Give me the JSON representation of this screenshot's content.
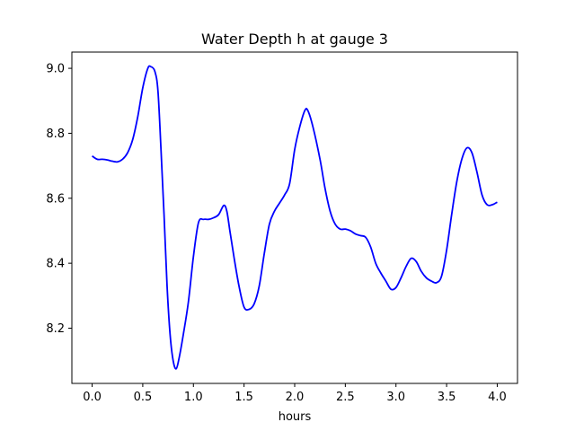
{
  "chart_data": {
    "type": "line",
    "title": "Water Depth h at gauge 3",
    "xlabel": "hours",
    "ylabel": "",
    "xlim": [
      -0.2,
      4.2
    ],
    "ylim": [
      8.03,
      9.05
    ],
    "xticks": [
      0.0,
      0.5,
      1.0,
      1.5,
      2.0,
      2.5,
      3.0,
      3.5,
      4.0
    ],
    "xtick_labels": [
      "0.0",
      "0.5",
      "1.0",
      "1.5",
      "2.0",
      "2.5",
      "3.0",
      "3.5",
      "4.0"
    ],
    "yticks": [
      8.2,
      8.4,
      8.6,
      8.8,
      9.0
    ],
    "ytick_labels": [
      "8.2",
      "8.4",
      "8.6",
      "8.8",
      "9.0"
    ],
    "grid": false,
    "series": [
      {
        "color": "#0000ff",
        "x": [
          0.0,
          0.05,
          0.1,
          0.15,
          0.2,
          0.25,
          0.3,
          0.35,
          0.4,
          0.45,
          0.5,
          0.55,
          0.58,
          0.62,
          0.65,
          0.68,
          0.71,
          0.74,
          0.77,
          0.8,
          0.83,
          0.86,
          0.9,
          0.95,
          1.0,
          1.05,
          1.1,
          1.15,
          1.2,
          1.25,
          1.3,
          1.33,
          1.36,
          1.4,
          1.45,
          1.5,
          1.55,
          1.6,
          1.65,
          1.7,
          1.75,
          1.8,
          1.85,
          1.9,
          1.95,
          2.0,
          2.05,
          2.1,
          2.13,
          2.18,
          2.25,
          2.3,
          2.35,
          2.4,
          2.45,
          2.5,
          2.55,
          2.6,
          2.65,
          2.7,
          2.75,
          2.8,
          2.85,
          2.9,
          2.95,
          3.0,
          3.05,
          3.1,
          3.15,
          3.2,
          3.25,
          3.3,
          3.35,
          3.4,
          3.45,
          3.5,
          3.55,
          3.6,
          3.65,
          3.7,
          3.75,
          3.8,
          3.85,
          3.9,
          3.95,
          4.0
        ],
        "y": [
          8.73,
          8.72,
          8.72,
          8.718,
          8.714,
          8.712,
          8.72,
          8.74,
          8.78,
          8.85,
          8.94,
          9.0,
          9.005,
          8.99,
          8.93,
          8.75,
          8.55,
          8.33,
          8.18,
          8.1,
          8.075,
          8.11,
          8.18,
          8.28,
          8.42,
          8.525,
          8.535,
          8.535,
          8.54,
          8.55,
          8.578,
          8.56,
          8.5,
          8.42,
          8.33,
          8.265,
          8.258,
          8.275,
          8.33,
          8.43,
          8.52,
          8.56,
          8.585,
          8.61,
          8.645,
          8.75,
          8.82,
          8.87,
          8.87,
          8.82,
          8.72,
          8.63,
          8.56,
          8.52,
          8.505,
          8.505,
          8.5,
          8.49,
          8.485,
          8.48,
          8.45,
          8.4,
          8.37,
          8.345,
          8.32,
          8.325,
          8.355,
          8.39,
          8.415,
          8.405,
          8.375,
          8.355,
          8.345,
          8.34,
          8.36,
          8.44,
          8.55,
          8.65,
          8.72,
          8.755,
          8.74,
          8.68,
          8.61,
          8.58,
          8.58,
          8.588
        ]
      }
    ]
  }
}
